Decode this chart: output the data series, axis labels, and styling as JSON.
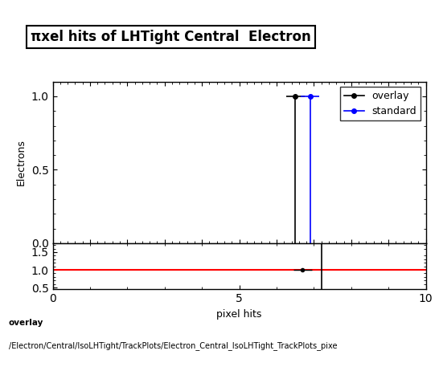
{
  "title": "πxel hits of LHTight Central  Electron",
  "ylabel_main": "Electrons",
  "xlabel": "pixel hits",
  "xlim": [
    0,
    10
  ],
  "ylim_main": [
    0,
    1.1
  ],
  "ylim_ratio": [
    0.45,
    1.75
  ],
  "ratio_yticks": [
    0.5,
    1.0,
    1.5
  ],
  "overlay_x": 6.5,
  "overlay_y": 1.0,
  "standard_x": 6.9,
  "standard_y": 1.0,
  "overlay_color": "black",
  "standard_color": "blue",
  "ratio_line_color": "red",
  "ratio_point_x": 6.7,
  "ratio_point_y": 1.0,
  "ratio_vline_x": 7.2,
  "overlay_label": "overlay",
  "standard_label": "standard",
  "footer_line1": "overlay",
  "footer_line2": "/Electron/Central/IsoLHTight/TrackPlots/Electron_Central_IsoLHTight_TrackPlots_pixe",
  "title_fontsize": 12,
  "axis_fontsize": 9,
  "legend_fontsize": 9,
  "footer_fontsize": 7.5
}
